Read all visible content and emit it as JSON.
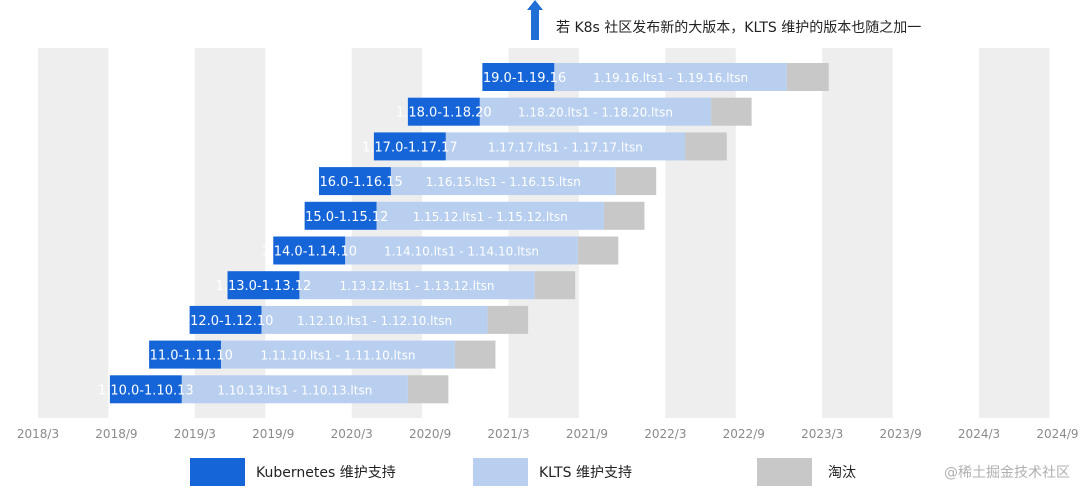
{
  "chart_data": {
    "type": "bar",
    "orientation": "horizontal-timeline",
    "annotation": "若 K8s 社区发布新的大版本，KLTS 维护的版本也随之加一",
    "x_ticks": [
      "2018/3",
      "2018/9",
      "2019/3",
      "2019/9",
      "2020/3",
      "2020/9",
      "2021/3",
      "2021/9",
      "2022/3",
      "2022/9",
      "2023/3",
      "2023/9",
      "2024/3",
      "2024/9"
    ],
    "grid": "vertical-bands",
    "legend": {
      "placement": "bottom",
      "entries": [
        {
          "label": "Kubernetes 维护支持",
          "color": "#1565d8"
        },
        {
          "label": "KLTS 维护支持",
          "color": "#b9cff0"
        },
        {
          "label": "淘汰",
          "color": "#c8c8c8"
        }
      ]
    },
    "x_unit": "months since 2018/3",
    "series_names": [
      "Kubernetes 维护支持",
      "KLTS 维护支持",
      "淘汰"
    ],
    "rows": [
      {
        "k8s": "1.19.0-1.19.16",
        "klts": "1.19.16.lts1 - 1.19.16.ltsn",
        "k_start": 34,
        "k_end": 39.5,
        "l_end": 57.3,
        "e_end": 60.5
      },
      {
        "k8s": "1.18.0-1.18.20",
        "klts": "1.18.20.lts1 - 1.18.20.ltsn",
        "k_start": 28.3,
        "k_end": 33.8,
        "l_end": 51.5,
        "e_end": 54.6
      },
      {
        "k8s": "1.17.0-1.17.17",
        "klts": "1.17.17.lts1 - 1.17.17.ltsn",
        "k_start": 25.7,
        "k_end": 31.2,
        "l_end": 49.5,
        "e_end": 52.7
      },
      {
        "k8s": "1.16.0-1.16.15",
        "klts": "1.16.15.lts1 - 1.16.15.ltsn",
        "k_start": 21.5,
        "k_end": 27.0,
        "l_end": 44.2,
        "e_end": 47.3
      },
      {
        "k8s": "1.15.0-1.15.12",
        "klts": "1.15.12.lts1 - 1.15.12.ltsn",
        "k_start": 20.4,
        "k_end": 25.9,
        "l_end": 43.3,
        "e_end": 46.4
      },
      {
        "k8s": "1.14.0-1.14.10",
        "klts": "1.14.10.lts1 - 1.14.10.ltsn",
        "k_start": 18.0,
        "k_end": 23.5,
        "l_end": 41.3,
        "e_end": 44.4
      },
      {
        "k8s": "1.13.0-1.13.12",
        "klts": "1.13.12.lts1 - 1.13.12.ltsn",
        "k_start": 14.5,
        "k_end": 20.0,
        "l_end": 38.0,
        "e_end": 41.1
      },
      {
        "k8s": "1.12.0-1.12.10",
        "klts": "1.12.10.lts1 - 1.12.10.ltsn",
        "k_start": 11.6,
        "k_end": 17.1,
        "l_end": 34.4,
        "e_end": 37.5
      },
      {
        "k8s": "1.11.0-1.11.10",
        "klts": "1.11.10.lts1 - 1.11.10.ltsn",
        "k_start": 8.5,
        "k_end": 14.0,
        "l_end": 31.9,
        "e_end": 35.0
      },
      {
        "k8s": "1.10.0-1.10.13",
        "klts": "1.10.13.lts1 - 1.10.13.ltsn",
        "k_start": 5.5,
        "k_end": 11.0,
        "l_end": 28.3,
        "e_end": 31.4
      }
    ]
  },
  "watermark": "@稀土掘金技术社区",
  "colors": {
    "k8s": "#1565d8",
    "klts": "#b9cff0",
    "eol": "#c8c8c8",
    "band": "#eeeeee",
    "arrow": "#1f6fd6"
  }
}
